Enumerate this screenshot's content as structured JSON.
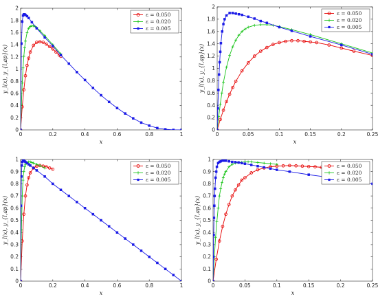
{
  "chart_data": [
    {
      "type": "line",
      "xlabel": "x",
      "ylabel": "y_l(x), y_{l,ap}(x)",
      "xlim": [
        0,
        1
      ],
      "ylim": [
        0,
        2
      ],
      "xticks": [
        "0",
        "0.2",
        "0.4",
        "0.6",
        "0.8",
        "1"
      ],
      "yticks": [
        "0",
        "0.2",
        "0.4",
        "0.6",
        "0.8",
        "1",
        "1.2",
        "1.4",
        "1.6",
        "1.8",
        "2"
      ],
      "legend": "top-right",
      "grid": false,
      "series": [
        {
          "name": "ε = 0.050",
          "color": "#e60000",
          "marker": "circle",
          "x": [
            0,
            0.01,
            0.02,
            0.03,
            0.04,
            0.05,
            0.06,
            0.08,
            0.1,
            0.12,
            0.14,
            0.16,
            0.18,
            0.2,
            0.22,
            0.24,
            0.25
          ],
          "y": [
            0,
            0.38,
            0.66,
            0.89,
            1.06,
            1.18,
            1.28,
            1.39,
            1.44,
            1.45,
            1.44,
            1.41,
            1.37,
            1.33,
            1.28,
            1.23,
            1.21
          ]
        },
        {
          "name": "ε = 0.020",
          "color": "#1bc41b",
          "marker": "plus",
          "x": [
            0,
            0.005,
            0.01,
            0.015,
            0.02,
            0.025,
            0.03,
            0.04,
            0.05,
            0.06,
            0.07,
            0.08,
            0.09,
            0.1,
            0.12,
            0.15,
            0.2,
            0.25
          ],
          "y": [
            0,
            0.42,
            0.77,
            1.02,
            1.21,
            1.35,
            1.46,
            1.6,
            1.67,
            1.7,
            1.71,
            1.71,
            1.7,
            1.68,
            1.63,
            1.55,
            1.4,
            1.25
          ]
        },
        {
          "name": "ε = 0.005",
          "color": "#1a1ae6",
          "marker": "square",
          "x": [
            0,
            0.005,
            0.01,
            0.015,
            0.02,
            0.025,
            0.03,
            0.04,
            0.05,
            0.07,
            0.1,
            0.15,
            0.2,
            0.25,
            0.3,
            0.35,
            0.4,
            0.45,
            0.5,
            0.55,
            0.6,
            0.65,
            0.7,
            0.75,
            0.8,
            0.85,
            0.9,
            0.95,
            1.0
          ],
          "y": [
            0,
            1.42,
            1.78,
            1.88,
            1.9,
            1.9,
            1.89,
            1.87,
            1.84,
            1.77,
            1.67,
            1.52,
            1.38,
            1.23,
            1.09,
            0.95,
            0.82,
            0.69,
            0.57,
            0.46,
            0.36,
            0.27,
            0.19,
            0.12,
            0.07,
            0.03,
            0.01,
            0.0,
            0.0
          ]
        }
      ]
    },
    {
      "type": "line",
      "xlabel": "x",
      "ylabel": "y_l(x), y_{l,ap}(x)",
      "xlim": [
        0,
        0.25
      ],
      "ylim": [
        0,
        2
      ],
      "xticks": [
        "0",
        "0.05",
        "0.1",
        "0.15",
        "0.2",
        "0.25"
      ],
      "yticks": [
        "0",
        "0.2",
        "0.4",
        "0.6",
        "0.8",
        "1",
        "1.2",
        "1.4",
        "1.6",
        "1.8",
        "2"
      ],
      "legend": "top-right",
      "grid": false,
      "series": [
        {
          "name": "ε = 0.050",
          "color": "#e60000",
          "marker": "circle",
          "x": [
            0,
            0.005,
            0.01,
            0.015,
            0.02,
            0.025,
            0.03,
            0.04,
            0.05,
            0.06,
            0.07,
            0.08,
            0.09,
            0.1,
            0.11,
            0.12,
            0.13,
            0.14,
            0.15,
            0.16,
            0.18,
            0.2,
            0.22,
            0.25
          ],
          "y": [
            0,
            0.17,
            0.32,
            0.46,
            0.58,
            0.69,
            0.79,
            0.96,
            1.09,
            1.2,
            1.28,
            1.34,
            1.39,
            1.42,
            1.44,
            1.45,
            1.45,
            1.44,
            1.43,
            1.42,
            1.38,
            1.33,
            1.28,
            1.21
          ]
        },
        {
          "name": "ε = 0.020",
          "color": "#1bc41b",
          "marker": "plus",
          "x": [
            0,
            0.0025,
            0.005,
            0.0075,
            0.01,
            0.015,
            0.02,
            0.025,
            0.03,
            0.035,
            0.04,
            0.045,
            0.05,
            0.06,
            0.07,
            0.08,
            0.09,
            0.1,
            0.12,
            0.15,
            0.2,
            0.25
          ],
          "y": [
            0,
            0.22,
            0.42,
            0.6,
            0.77,
            1.02,
            1.21,
            1.35,
            1.46,
            1.54,
            1.6,
            1.64,
            1.67,
            1.7,
            1.71,
            1.71,
            1.7,
            1.68,
            1.63,
            1.55,
            1.4,
            1.25
          ]
        },
        {
          "name": "ε = 0.005",
          "color": "#1a1ae6",
          "marker": "square",
          "x": [
            0,
            0.001,
            0.002,
            0.003,
            0.004,
            0.005,
            0.006,
            0.008,
            0.01,
            0.012,
            0.015,
            0.02,
            0.025,
            0.03,
            0.035,
            0.04,
            0.05,
            0.06,
            0.07,
            0.08,
            0.1,
            0.12,
            0.15,
            0.2,
            0.25
          ],
          "y": [
            0,
            0.35,
            0.65,
            0.9,
            1.1,
            1.27,
            1.41,
            1.6,
            1.72,
            1.8,
            1.86,
            1.9,
            1.9,
            1.89,
            1.88,
            1.87,
            1.84,
            1.81,
            1.77,
            1.74,
            1.67,
            1.61,
            1.52,
            1.38,
            1.23
          ]
        }
      ]
    },
    {
      "type": "line",
      "xlabel": "x",
      "ylabel": "y_l(x), y_{l,ap}(x)",
      "xlim": [
        0,
        1
      ],
      "ylim": [
        0,
        1
      ],
      "xticks": [
        "0",
        "0.2",
        "0.4",
        "0.6",
        "0.8",
        "1"
      ],
      "yticks": [
        "0",
        "0.1",
        "0.2",
        "0.3",
        "0.4",
        "0.5",
        "0.6",
        "0.7",
        "0.8",
        "0.9",
        "1"
      ],
      "legend": "top-right",
      "grid": false,
      "series": [
        {
          "name": "ε = 0.050",
          "color": "#e60000",
          "marker": "circle",
          "x": [
            0,
            0.01,
            0.02,
            0.03,
            0.04,
            0.05,
            0.06,
            0.08,
            0.1,
            0.12,
            0.14,
            0.16,
            0.18,
            0.2
          ],
          "y": [
            0,
            0.33,
            0.55,
            0.7,
            0.79,
            0.85,
            0.89,
            0.93,
            0.945,
            0.95,
            0.945,
            0.94,
            0.93,
            0.92
          ]
        },
        {
          "name": "ε = 0.020",
          "color": "#1bc41b",
          "marker": "plus",
          "x": [
            0,
            0.005,
            0.01,
            0.015,
            0.02,
            0.025,
            0.03,
            0.04,
            0.05,
            0.06,
            0.07,
            0.08,
            0.1,
            0.12,
            0.15
          ],
          "y": [
            0,
            0.42,
            0.7,
            0.83,
            0.9,
            0.94,
            0.96,
            0.975,
            0.98,
            0.98,
            0.975,
            0.97,
            0.96,
            0.95,
            0.93
          ]
        },
        {
          "name": "ε = 0.005",
          "color": "#1a1ae6",
          "marker": "square",
          "x": [
            0,
            0.0025,
            0.005,
            0.0075,
            0.01,
            0.015,
            0.02,
            0.025,
            0.03,
            0.04,
            0.05,
            0.06,
            0.08,
            0.1,
            0.15,
            0.2,
            0.25,
            0.3,
            0.35,
            0.4,
            0.45,
            0.5,
            0.55,
            0.6,
            0.65,
            0.7,
            0.75,
            0.8,
            0.85,
            0.9,
            0.95,
            1.0
          ],
          "y": [
            0,
            0.62,
            0.86,
            0.95,
            0.98,
            0.99,
            0.99,
            0.985,
            0.98,
            0.97,
            0.96,
            0.95,
            0.93,
            0.91,
            0.86,
            0.8,
            0.75,
            0.7,
            0.65,
            0.6,
            0.55,
            0.5,
            0.45,
            0.4,
            0.35,
            0.3,
            0.25,
            0.2,
            0.15,
            0.1,
            0.05,
            0.0
          ]
        }
      ]
    },
    {
      "type": "line",
      "xlabel": "x",
      "ylabel": "y_l(x), y_{l,ap}(x)",
      "xlim": [
        0,
        0.25
      ],
      "ylim": [
        0,
        1
      ],
      "xticks": [
        "0",
        "0.05",
        "0.1",
        "0.15",
        "0.2",
        "0.25"
      ],
      "yticks": [
        "0",
        "0.1",
        "0.2",
        "0.3",
        "0.4",
        "0.5",
        "0.6",
        "0.7",
        "0.8",
        "0.9",
        "1"
      ],
      "legend": "top-right",
      "grid": false,
      "series": [
        {
          "name": "ε = 0.050",
          "color": "#e60000",
          "marker": "circle",
          "x": [
            0,
            0.005,
            0.01,
            0.015,
            0.02,
            0.025,
            0.03,
            0.035,
            0.04,
            0.045,
            0.05,
            0.06,
            0.07,
            0.08,
            0.09,
            0.1,
            0.11,
            0.12,
            0.13,
            0.14,
            0.15,
            0.16,
            0.17
          ],
          "y": [
            0,
            0.18,
            0.33,
            0.45,
            0.55,
            0.63,
            0.7,
            0.75,
            0.79,
            0.83,
            0.85,
            0.89,
            0.915,
            0.93,
            0.94,
            0.945,
            0.948,
            0.95,
            0.948,
            0.945,
            0.942,
            0.94,
            0.935
          ]
        },
        {
          "name": "ε = 0.020",
          "color": "#1bc41b",
          "marker": "plus",
          "x": [
            0,
            0.002,
            0.004,
            0.006,
            0.008,
            0.01,
            0.012,
            0.014,
            0.016,
            0.018,
            0.02,
            0.025,
            0.03,
            0.035,
            0.04,
            0.045,
            0.05,
            0.055,
            0.06,
            0.07,
            0.08,
            0.09,
            0.1
          ],
          "y": [
            0,
            0.2,
            0.36,
            0.49,
            0.6,
            0.7,
            0.76,
            0.81,
            0.85,
            0.88,
            0.9,
            0.94,
            0.96,
            0.97,
            0.975,
            0.978,
            0.98,
            0.98,
            0.98,
            0.975,
            0.97,
            0.965,
            0.96
          ]
        },
        {
          "name": "ε = 0.005",
          "color": "#1a1ae6",
          "marker": "square",
          "x": [
            0,
            0.0005,
            0.001,
            0.0015,
            0.002,
            0.0025,
            0.003,
            0.004,
            0.005,
            0.006,
            0.008,
            0.01,
            0.012,
            0.015,
            0.018,
            0.02,
            0.025,
            0.03,
            0.035,
            0.04,
            0.045,
            0.05,
            0.06,
            0.07,
            0.08,
            0.09,
            0.1,
            0.12,
            0.15,
            0.2,
            0.25
          ],
          "y": [
            0,
            0.2,
            0.38,
            0.52,
            0.62,
            0.7,
            0.76,
            0.85,
            0.9,
            0.94,
            0.97,
            0.98,
            0.985,
            0.99,
            0.99,
            0.99,
            0.985,
            0.98,
            0.978,
            0.975,
            0.97,
            0.965,
            0.955,
            0.945,
            0.935,
            0.925,
            0.915,
            0.9,
            0.875,
            0.84,
            0.8
          ]
        }
      ]
    }
  ]
}
